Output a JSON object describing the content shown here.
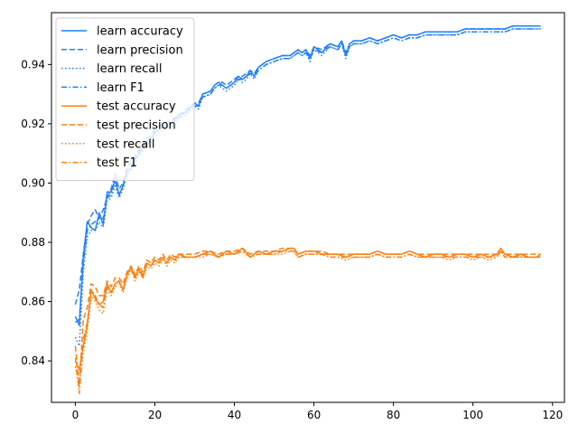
{
  "chart_data": {
    "type": "line",
    "title": "",
    "xlabel": "",
    "ylabel": "",
    "xlim": [
      -6,
      123
    ],
    "ylim": [
      0.826,
      0.9575
    ],
    "x_ticks": [
      0,
      20,
      40,
      60,
      80,
      100,
      120
    ],
    "y_ticks": [
      0.84,
      0.86,
      0.88,
      0.9,
      0.92,
      0.94
    ],
    "y_tick_labels": [
      "0.84",
      "0.86",
      "0.88",
      "0.90",
      "0.92",
      "0.94"
    ],
    "grid": false,
    "legend_position": "upper-left",
    "colors": {
      "learn": "#1f7fff",
      "test": "#ff7f0e"
    },
    "series": [
      {
        "name": "learn accuracy",
        "group": "learn",
        "style": "solid"
      },
      {
        "name": "learn precision",
        "group": "learn",
        "style": "dashed"
      },
      {
        "name": "learn recall",
        "group": "learn",
        "style": "dotted"
      },
      {
        "name": "learn F1",
        "group": "learn",
        "style": "dashdot"
      },
      {
        "name": "test accuracy",
        "group": "test",
        "style": "solid"
      },
      {
        "name": "test precision",
        "group": "test",
        "style": "dashed"
      },
      {
        "name": "test recall",
        "group": "test",
        "style": "dotted"
      },
      {
        "name": "test F1",
        "group": "test",
        "style": "dashdot"
      }
    ],
    "learn_x": [
      0,
      1,
      2,
      3,
      4,
      5,
      6,
      7,
      8,
      9,
      10,
      11,
      12,
      13,
      14,
      15,
      16,
      17,
      18,
      19,
      20,
      22,
      24,
      26,
      28,
      30,
      31,
      32,
      34,
      35,
      36,
      37,
      38,
      40,
      41,
      42,
      43,
      44,
      45,
      46,
      47,
      48,
      50,
      52,
      54,
      55,
      56,
      57,
      58,
      59,
      60,
      62,
      64,
      66,
      67,
      68,
      69,
      70,
      72,
      74,
      76,
      78,
      80,
      82,
      84,
      86,
      88,
      90,
      92,
      94,
      96,
      98,
      100,
      102,
      104,
      106,
      108,
      110,
      112,
      114,
      116,
      117
    ],
    "learn_accuracy": [
      0.855,
      0.852,
      0.875,
      0.887,
      0.885,
      0.884,
      0.89,
      0.886,
      0.897,
      0.897,
      0.901,
      0.896,
      0.899,
      0.904,
      0.905,
      0.908,
      0.91,
      0.912,
      0.914,
      0.915,
      0.917,
      0.919,
      0.92,
      0.923,
      0.924,
      0.927,
      0.926,
      0.93,
      0.931,
      0.933,
      0.934,
      0.933,
      0.932,
      0.934,
      0.936,
      0.935,
      0.936,
      0.938,
      0.936,
      0.939,
      0.94,
      0.941,
      0.942,
      0.943,
      0.943,
      0.944,
      0.945,
      0.944,
      0.945,
      0.942,
      0.946,
      0.944,
      0.947,
      0.946,
      0.948,
      0.943,
      0.947,
      0.948,
      0.948,
      0.949,
      0.948,
      0.949,
      0.95,
      0.949,
      0.95,
      0.95,
      0.951,
      0.951,
      0.951,
      0.951,
      0.951,
      0.952,
      0.952,
      0.952,
      0.952,
      0.952,
      0.952,
      0.953,
      0.953,
      0.953,
      0.953,
      0.953
    ],
    "learn_precision": [
      0.859,
      0.864,
      0.876,
      0.886,
      0.889,
      0.891,
      0.888,
      0.891,
      0.895,
      0.898,
      0.903,
      0.898,
      0.9,
      0.905,
      0.907,
      0.909,
      0.911,
      0.913,
      0.915,
      0.916,
      0.918,
      0.92,
      0.921,
      0.923,
      0.925,
      0.927,
      0.927,
      0.93,
      0.931,
      0.933,
      0.934,
      0.934,
      0.933,
      0.935,
      0.936,
      0.936,
      0.937,
      0.938,
      0.937,
      0.939,
      0.94,
      0.941,
      0.942,
      0.943,
      0.943,
      0.944,
      0.945,
      0.944,
      0.945,
      0.943,
      0.946,
      0.945,
      0.947,
      0.946,
      0.948,
      0.944,
      0.947,
      0.948,
      0.948,
      0.949,
      0.948,
      0.949,
      0.95,
      0.949,
      0.95,
      0.95,
      0.951,
      0.951,
      0.951,
      0.951,
      0.951,
      0.952,
      0.952,
      0.952,
      0.952,
      0.952,
      0.952,
      0.953,
      0.953,
      0.953,
      0.953,
      0.953
    ],
    "learn_recall": [
      0.848,
      0.845,
      0.87,
      0.882,
      0.884,
      0.884,
      0.887,
      0.885,
      0.894,
      0.895,
      0.899,
      0.895,
      0.898,
      0.903,
      0.904,
      0.907,
      0.909,
      0.911,
      0.913,
      0.914,
      0.916,
      0.918,
      0.919,
      0.922,
      0.923,
      0.926,
      0.925,
      0.929,
      0.93,
      0.932,
      0.933,
      0.932,
      0.931,
      0.933,
      0.935,
      0.934,
      0.935,
      0.937,
      0.935,
      0.938,
      0.939,
      0.94,
      0.941,
      0.942,
      0.942,
      0.943,
      0.944,
      0.943,
      0.944,
      0.941,
      0.945,
      0.943,
      0.946,
      0.945,
      0.947,
      0.942,
      0.946,
      0.947,
      0.947,
      0.948,
      0.947,
      0.948,
      0.949,
      0.948,
      0.949,
      0.949,
      0.95,
      0.95,
      0.95,
      0.95,
      0.95,
      0.951,
      0.951,
      0.951,
      0.951,
      0.951,
      0.951,
      0.952,
      0.952,
      0.952,
      0.952,
      0.952
    ],
    "learn_f1": [
      0.853,
      0.854,
      0.873,
      0.884,
      0.886,
      0.887,
      0.888,
      0.888,
      0.895,
      0.896,
      0.901,
      0.896,
      0.899,
      0.904,
      0.905,
      0.908,
      0.91,
      0.912,
      0.914,
      0.915,
      0.917,
      0.919,
      0.92,
      0.922,
      0.924,
      0.926,
      0.926,
      0.929,
      0.93,
      0.932,
      0.933,
      0.933,
      0.932,
      0.934,
      0.935,
      0.935,
      0.936,
      0.937,
      0.936,
      0.938,
      0.939,
      0.94,
      0.941,
      0.942,
      0.942,
      0.943,
      0.944,
      0.943,
      0.944,
      0.942,
      0.945,
      0.944,
      0.946,
      0.945,
      0.947,
      0.943,
      0.946,
      0.947,
      0.947,
      0.948,
      0.947,
      0.948,
      0.949,
      0.948,
      0.949,
      0.949,
      0.95,
      0.95,
      0.95,
      0.95,
      0.95,
      0.951,
      0.951,
      0.951,
      0.951,
      0.951,
      0.951,
      0.952,
      0.952,
      0.952,
      0.952,
      0.952
    ],
    "test_x": [
      0,
      1,
      2,
      3,
      4,
      5,
      6,
      7,
      8,
      9,
      10,
      11,
      12,
      13,
      14,
      15,
      16,
      17,
      18,
      19,
      20,
      21,
      22,
      23,
      24,
      25,
      26,
      28,
      30,
      32,
      34,
      36,
      38,
      40,
      42,
      44,
      46,
      48,
      50,
      52,
      54,
      55,
      56,
      58,
      60,
      62,
      64,
      66,
      68,
      70,
      72,
      74,
      76,
      78,
      80,
      82,
      84,
      86,
      88,
      90,
      92,
      94,
      96,
      98,
      100,
      102,
      104,
      106,
      107,
      108,
      110,
      112,
      114,
      116,
      117
    ],
    "test_accuracy": [
      0.84,
      0.837,
      0.845,
      0.852,
      0.864,
      0.861,
      0.859,
      0.86,
      0.866,
      0.863,
      0.866,
      0.867,
      0.864,
      0.869,
      0.872,
      0.868,
      0.871,
      0.868,
      0.873,
      0.872,
      0.874,
      0.873,
      0.875,
      0.873,
      0.875,
      0.874,
      0.876,
      0.875,
      0.875,
      0.876,
      0.877,
      0.875,
      0.877,
      0.876,
      0.878,
      0.875,
      0.877,
      0.876,
      0.877,
      0.877,
      0.878,
      0.878,
      0.876,
      0.877,
      0.877,
      0.876,
      0.876,
      0.876,
      0.875,
      0.876,
      0.876,
      0.876,
      0.877,
      0.876,
      0.876,
      0.876,
      0.877,
      0.876,
      0.875,
      0.876,
      0.876,
      0.875,
      0.876,
      0.876,
      0.875,
      0.876,
      0.875,
      0.876,
      0.878,
      0.876,
      0.875,
      0.876,
      0.875,
      0.875,
      0.876
    ],
    "test_precision": [
      0.845,
      0.832,
      0.854,
      0.858,
      0.866,
      0.865,
      0.862,
      0.862,
      0.867,
      0.865,
      0.868,
      0.868,
      0.866,
      0.87,
      0.872,
      0.869,
      0.872,
      0.87,
      0.874,
      0.873,
      0.875,
      0.874,
      0.876,
      0.874,
      0.876,
      0.875,
      0.876,
      0.876,
      0.876,
      0.877,
      0.877,
      0.876,
      0.877,
      0.877,
      0.878,
      0.876,
      0.877,
      0.877,
      0.877,
      0.878,
      0.878,
      0.878,
      0.876,
      0.877,
      0.877,
      0.877,
      0.876,
      0.876,
      0.876,
      0.876,
      0.876,
      0.876,
      0.877,
      0.876,
      0.876,
      0.876,
      0.877,
      0.876,
      0.876,
      0.876,
      0.876,
      0.876,
      0.876,
      0.876,
      0.876,
      0.876,
      0.876,
      0.876,
      0.877,
      0.876,
      0.876,
      0.876,
      0.876,
      0.876,
      0.876
    ],
    "test_recall": [
      0.838,
      0.831,
      0.843,
      0.85,
      0.862,
      0.86,
      0.857,
      0.856,
      0.864,
      0.862,
      0.865,
      0.866,
      0.863,
      0.868,
      0.871,
      0.867,
      0.87,
      0.868,
      0.872,
      0.871,
      0.873,
      0.872,
      0.874,
      0.872,
      0.874,
      0.873,
      0.875,
      0.875,
      0.875,
      0.875,
      0.876,
      0.875,
      0.876,
      0.876,
      0.877,
      0.875,
      0.876,
      0.876,
      0.876,
      0.876,
      0.877,
      0.877,
      0.875,
      0.876,
      0.876,
      0.876,
      0.875,
      0.875,
      0.874,
      0.875,
      0.875,
      0.875,
      0.876,
      0.875,
      0.875,
      0.875,
      0.876,
      0.875,
      0.875,
      0.875,
      0.875,
      0.874,
      0.875,
      0.875,
      0.874,
      0.875,
      0.874,
      0.875,
      0.877,
      0.875,
      0.875,
      0.875,
      0.875,
      0.875,
      0.875
    ],
    "test_f1": [
      0.841,
      0.829,
      0.847,
      0.853,
      0.864,
      0.862,
      0.859,
      0.858,
      0.865,
      0.863,
      0.866,
      0.867,
      0.864,
      0.869,
      0.871,
      0.868,
      0.871,
      0.869,
      0.873,
      0.872,
      0.874,
      0.873,
      0.875,
      0.873,
      0.875,
      0.874,
      0.875,
      0.875,
      0.875,
      0.876,
      0.876,
      0.875,
      0.876,
      0.876,
      0.877,
      0.875,
      0.876,
      0.876,
      0.876,
      0.877,
      0.877,
      0.877,
      0.875,
      0.876,
      0.876,
      0.876,
      0.875,
      0.875,
      0.875,
      0.875,
      0.875,
      0.875,
      0.876,
      0.875,
      0.875,
      0.875,
      0.876,
      0.875,
      0.875,
      0.875,
      0.875,
      0.875,
      0.875,
      0.875,
      0.875,
      0.875,
      0.875,
      0.875,
      0.877,
      0.875,
      0.875,
      0.875,
      0.875,
      0.875,
      0.875
    ]
  }
}
